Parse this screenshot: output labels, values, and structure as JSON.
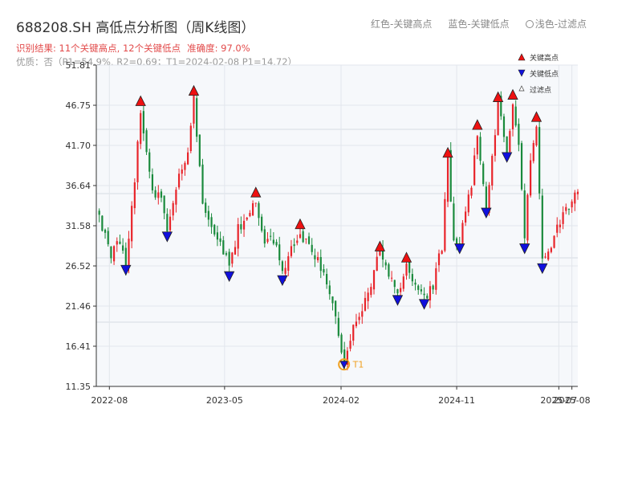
{
  "header": {
    "title": "688208.SH 高低点分析图（周K线图）",
    "legend_red": "红色-关键高点",
    "legend_blue": "蓝色-关键低点",
    "legend_light": "浅色-过滤点",
    "result_text": "识别结果: 11个关键高点, 12个关键低点",
    "accuracy_text": "准确度: 97.0%",
    "quality_text": "优质：否（P1=54.9%, R2=0.69；T1=2024-02-08 P1=14.72）"
  },
  "colors": {
    "up": "#e8242a",
    "down": "#1a8a3c",
    "high_marker": "#ee1111",
    "low_marker": "#1010dd",
    "t1": "#f0a020",
    "plot_bg": "#f6f8fb"
  },
  "chart_data": {
    "type": "candlestick",
    "title": "688208.SH 高低点分析图（周K线图）",
    "xlabel": "",
    "ylabel": "",
    "ylim": [
      11.35,
      51.81
    ],
    "x_range": [
      "2022-07-01",
      "2025-08-15"
    ],
    "y_ticks": [
      "11.35",
      "16.41",
      "21.46",
      "26.52",
      "31.58",
      "36.64",
      "41.70",
      "46.75",
      "51.81"
    ],
    "x_ticks": [
      {
        "label": "2022-08",
        "date": "2022-08-01"
      },
      {
        "label": "2023-05",
        "date": "2023-05-01"
      },
      {
        "label": "2024-02",
        "date": "2024-02-01"
      },
      {
        "label": "2024-11",
        "date": "2024-11-01"
      },
      {
        "label": "2025-07",
        "date": "2025-07-01"
      },
      {
        "label": "2025-08",
        "date": "2025-08-01"
      }
    ],
    "legend": {
      "placement": "top-right",
      "entries": [
        "关键高点",
        "关键低点",
        "过滤点"
      ]
    },
    "price_path": [
      [
        "2022-07-01",
        33.5
      ],
      [
        "2022-08-05",
        27.5
      ],
      [
        "2022-08-26",
        30.0
      ],
      [
        "2022-09-09",
        26.8
      ],
      [
        "2022-09-30",
        37.0
      ],
      [
        "2022-10-14",
        46.5
      ],
      [
        "2022-11-11",
        36.0
      ],
      [
        "2022-12-02",
        35.0
      ],
      [
        "2022-12-16",
        31.0
      ],
      [
        "2023-01-13",
        37.5
      ],
      [
        "2023-02-03",
        41.0
      ],
      [
        "2023-02-17",
        47.8
      ],
      [
        "2023-03-10",
        35.0
      ],
      [
        "2023-03-31",
        32.0
      ],
      [
        "2023-04-21",
        29.5
      ],
      [
        "2023-05-12",
        26.0
      ],
      [
        "2023-06-02",
        31.0
      ],
      [
        "2023-06-30",
        33.5
      ],
      [
        "2023-07-14",
        35.0
      ],
      [
        "2023-08-04",
        29.5
      ],
      [
        "2023-08-25",
        30.0
      ],
      [
        "2023-09-15",
        25.5
      ],
      [
        "2023-10-13",
        29.5
      ],
      [
        "2023-10-27",
        31.0
      ],
      [
        "2023-11-17",
        28.5
      ],
      [
        "2023-12-08",
        27.5
      ],
      [
        "2023-12-29",
        24.0
      ],
      [
        "2024-01-19",
        20.0
      ],
      [
        "2024-02-08",
        14.72
      ],
      [
        "2024-03-01",
        19.0
      ],
      [
        "2024-03-22",
        20.5
      ],
      [
        "2024-04-12",
        24.5
      ],
      [
        "2024-05-03",
        28.2
      ],
      [
        "2024-05-24",
        25.0
      ],
      [
        "2024-06-14",
        23.0
      ],
      [
        "2024-07-05",
        26.8
      ],
      [
        "2024-07-26",
        24.0
      ],
      [
        "2024-08-16",
        22.5
      ],
      [
        "2024-09-06",
        24.0
      ],
      [
        "2024-09-27",
        29.0
      ],
      [
        "2024-10-11",
        40.0
      ],
      [
        "2024-10-25",
        30.0
      ],
      [
        "2024-11-08",
        29.5
      ],
      [
        "2024-12-06",
        37.0
      ],
      [
        "2024-12-20",
        43.5
      ],
      [
        "2025-01-10",
        34.0
      ],
      [
        "2025-01-24",
        40.0
      ],
      [
        "2025-02-07",
        47.0
      ],
      [
        "2025-02-28",
        41.0
      ],
      [
        "2025-03-14",
        47.3
      ],
      [
        "2025-03-28",
        42.0
      ],
      [
        "2025-04-11",
        29.5
      ],
      [
        "2025-04-25",
        40.0
      ],
      [
        "2025-05-09",
        44.5
      ],
      [
        "2025-05-23",
        27.0
      ],
      [
        "2025-06-13",
        29.5
      ],
      [
        "2025-07-04",
        32.0
      ],
      [
        "2025-07-25",
        34.0
      ],
      [
        "2025-08-15",
        35.5
      ]
    ],
    "key_highs": [
      {
        "date": "2022-10-14",
        "value": 46.5
      },
      {
        "date": "2023-02-17",
        "value": 47.8
      },
      {
        "date": "2023-07-14",
        "value": 35.0
      },
      {
        "date": "2023-10-27",
        "value": 31.0
      },
      {
        "date": "2024-05-03",
        "value": 28.2
      },
      {
        "date": "2024-07-05",
        "value": 26.8
      },
      {
        "date": "2024-10-11",
        "value": 40.0
      },
      {
        "date": "2024-12-20",
        "value": 43.5
      },
      {
        "date": "2025-02-07",
        "value": 47.0
      },
      {
        "date": "2025-03-14",
        "value": 47.3
      },
      {
        "date": "2025-05-09",
        "value": 44.5
      }
    ],
    "key_lows": [
      {
        "date": "2022-09-09",
        "value": 26.8
      },
      {
        "date": "2022-12-16",
        "value": 31.0
      },
      {
        "date": "2023-05-12",
        "value": 26.0
      },
      {
        "date": "2023-09-15",
        "value": 25.5
      },
      {
        "date": "2024-02-08",
        "value": 14.72
      },
      {
        "date": "2024-06-14",
        "value": 23.0
      },
      {
        "date": "2024-08-16",
        "value": 22.5
      },
      {
        "date": "2024-11-08",
        "value": 29.5
      },
      {
        "date": "2025-01-10",
        "value": 34.0
      },
      {
        "date": "2025-02-28",
        "value": 41.0
      },
      {
        "date": "2025-04-11",
        "value": 29.5
      },
      {
        "date": "2025-05-23",
        "value": 27.0
      }
    ],
    "t1": {
      "label": "T1",
      "date": "2024-02-08",
      "value": 14.72
    }
  }
}
